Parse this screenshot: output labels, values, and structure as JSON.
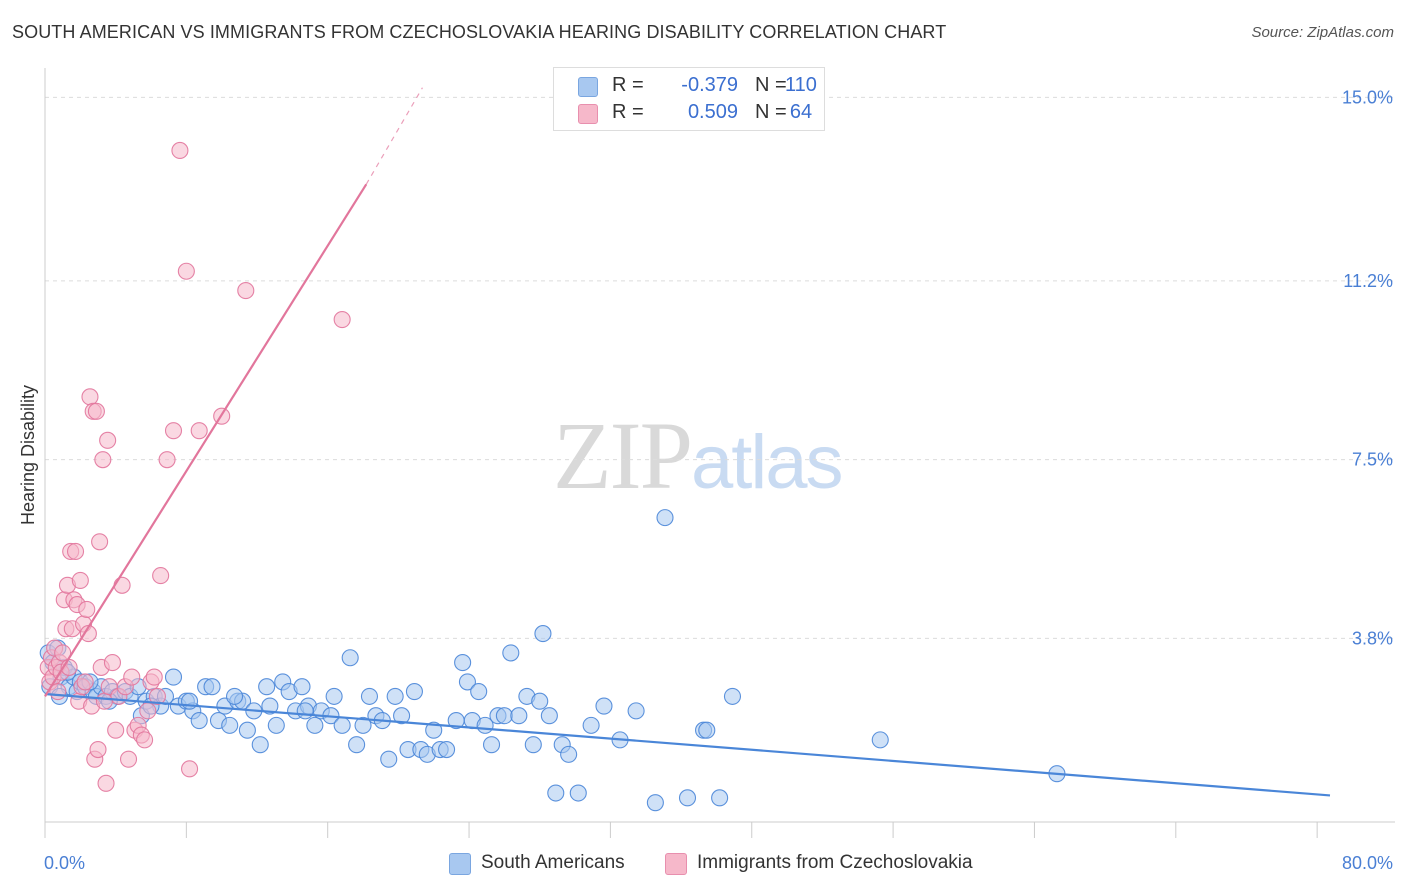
{
  "header": {
    "title": "SOUTH AMERICAN VS IMMIGRANTS FROM CZECHOSLOVAKIA HEARING DISABILITY CORRELATION CHART",
    "source": "Source: ZipAtlas.com"
  },
  "watermark": {
    "part1": "ZIP",
    "part2": "atlas"
  },
  "legend": {
    "rows": [
      {
        "r_label": "R =",
        "r_value": "-0.379",
        "n_label": "N =",
        "n_value": "110",
        "color": "#a8c8f0"
      },
      {
        "r_label": "R =",
        "r_value": "0.509",
        "n_label": "N =",
        "n_value": "64",
        "color": "#f6b8ca"
      }
    ]
  },
  "bottom_legend": {
    "items": [
      {
        "label": "South Americans",
        "color": "#a8c8f0"
      },
      {
        "label": "Immigrants from Czechoslovakia",
        "color": "#f6b8ca"
      }
    ]
  },
  "chart_data": {
    "type": "scatter",
    "ylabel": "Hearing Disability",
    "x_tick_labels": [
      "0.0%",
      "80.0%"
    ],
    "y_tick_labels": [
      "15.0%",
      "11.2%",
      "7.5%",
      "3.8%"
    ],
    "y_ticks": [
      15.0,
      11.2,
      7.5,
      3.8
    ],
    "xlim": [
      0,
      80
    ],
    "ylim": [
      0,
      15.4
    ],
    "grid": true,
    "legend_position": "top-center",
    "series": [
      {
        "name": "South Americans",
        "color": "#4a86d8",
        "fill": "#a8c8f0",
        "trend": {
          "x": [
            0,
            80
          ],
          "y": [
            2.65,
            0.55
          ]
        },
        "points": [
          [
            0.2,
            3.5
          ],
          [
            0.5,
            3.3
          ],
          [
            0.8,
            3.6
          ],
          [
            1.0,
            3.0
          ],
          [
            1.2,
            3.2
          ],
          [
            1.5,
            2.8
          ],
          [
            1.8,
            3.0
          ],
          [
            2.0,
            2.7
          ],
          [
            2.2,
            2.9
          ],
          [
            2.5,
            2.8
          ],
          [
            3.0,
            2.7
          ],
          [
            3.2,
            2.6
          ],
          [
            3.5,
            2.8
          ],
          [
            3.8,
            2.6
          ],
          [
            4.2,
            2.7
          ],
          [
            4.5,
            2.6
          ],
          [
            5.0,
            2.7
          ],
          [
            5.3,
            2.6
          ],
          [
            5.8,
            2.8
          ],
          [
            6.0,
            2.2
          ],
          [
            6.3,
            2.5
          ],
          [
            6.8,
            2.6
          ],
          [
            7.2,
            2.4
          ],
          [
            7.5,
            2.6
          ],
          [
            8.0,
            3.0
          ],
          [
            8.3,
            2.4
          ],
          [
            8.8,
            2.5
          ],
          [
            9.2,
            2.3
          ],
          [
            9.6,
            2.1
          ],
          [
            10.0,
            2.8
          ],
          [
            10.4,
            2.8
          ],
          [
            10.8,
            2.1
          ],
          [
            11.2,
            2.4
          ],
          [
            11.5,
            2.0
          ],
          [
            12.0,
            2.5
          ],
          [
            12.3,
            2.5
          ],
          [
            12.6,
            1.9
          ],
          [
            13.0,
            2.3
          ],
          [
            13.4,
            1.6
          ],
          [
            13.8,
            2.8
          ],
          [
            14.0,
            2.4
          ],
          [
            14.4,
            2.0
          ],
          [
            14.8,
            2.9
          ],
          [
            15.2,
            2.7
          ],
          [
            15.6,
            2.3
          ],
          [
            16.0,
            2.8
          ],
          [
            16.4,
            2.4
          ],
          [
            16.8,
            2.0
          ],
          [
            17.2,
            2.3
          ],
          [
            17.8,
            2.2
          ],
          [
            18.0,
            2.6
          ],
          [
            18.5,
            2.0
          ],
          [
            19.0,
            3.4
          ],
          [
            19.4,
            1.6
          ],
          [
            19.8,
            2.0
          ],
          [
            20.2,
            2.6
          ],
          [
            20.6,
            2.2
          ],
          [
            21.0,
            2.1
          ],
          [
            21.4,
            1.3
          ],
          [
            21.8,
            2.6
          ],
          [
            22.2,
            2.2
          ],
          [
            22.6,
            1.5
          ],
          [
            23.0,
            2.7
          ],
          [
            23.4,
            1.5
          ],
          [
            23.8,
            1.4
          ],
          [
            24.2,
            1.9
          ],
          [
            24.6,
            1.5
          ],
          [
            25.0,
            1.5
          ],
          [
            25.6,
            2.1
          ],
          [
            26.0,
            3.3
          ],
          [
            26.3,
            2.9
          ],
          [
            26.6,
            2.1
          ],
          [
            27.0,
            2.7
          ],
          [
            27.4,
            2.0
          ],
          [
            27.8,
            1.6
          ],
          [
            28.2,
            2.2
          ],
          [
            28.6,
            2.2
          ],
          [
            29.0,
            3.5
          ],
          [
            29.5,
            2.2
          ],
          [
            30.0,
            2.6
          ],
          [
            30.4,
            1.6
          ],
          [
            30.8,
            2.5
          ],
          [
            31.0,
            3.9
          ],
          [
            31.4,
            2.2
          ],
          [
            31.8,
            0.6
          ],
          [
            32.2,
            1.6
          ],
          [
            32.6,
            1.4
          ],
          [
            33.2,
            0.6
          ],
          [
            34.0,
            2.0
          ],
          [
            34.8,
            2.4
          ],
          [
            35.8,
            1.7
          ],
          [
            36.8,
            2.3
          ],
          [
            38.0,
            0.4
          ],
          [
            38.6,
            6.3
          ],
          [
            40.0,
            0.5
          ],
          [
            41.0,
            1.9
          ],
          [
            41.2,
            1.9
          ],
          [
            42.0,
            0.5
          ],
          [
            42.8,
            2.6
          ],
          [
            52.0,
            1.7
          ],
          [
            63.0,
            1.0
          ],
          [
            0.3,
            2.8
          ],
          [
            0.9,
            2.6
          ],
          [
            1.4,
            3.1
          ],
          [
            2.8,
            2.9
          ],
          [
            4.0,
            2.5
          ],
          [
            6.6,
            2.4
          ],
          [
            9.0,
            2.5
          ],
          [
            11.8,
            2.6
          ],
          [
            16.2,
            2.3
          ]
        ]
      },
      {
        "name": "Immigrants from Czechoslovakia",
        "color": "#e2769c",
        "fill": "#f6b8ca",
        "trend": {
          "x": [
            0,
            20
          ],
          "y": [
            2.6,
            13.2
          ]
        },
        "trend_extension": {
          "x": [
            20,
            23.5
          ],
          "y": [
            13.2,
            15.2
          ]
        },
        "points": [
          [
            0.2,
            3.2
          ],
          [
            0.3,
            2.9
          ],
          [
            0.4,
            3.4
          ],
          [
            0.5,
            3.0
          ],
          [
            0.6,
            3.6
          ],
          [
            0.7,
            3.2
          ],
          [
            0.8,
            2.7
          ],
          [
            0.9,
            3.3
          ],
          [
            1.0,
            3.1
          ],
          [
            1.1,
            3.5
          ],
          [
            1.2,
            4.6
          ],
          [
            1.3,
            4.0
          ],
          [
            1.4,
            4.9
          ],
          [
            1.5,
            3.2
          ],
          [
            1.6,
            5.6
          ],
          [
            1.7,
            4.0
          ],
          [
            1.8,
            4.6
          ],
          [
            1.9,
            5.6
          ],
          [
            2.0,
            4.5
          ],
          [
            2.1,
            2.5
          ],
          [
            2.2,
            5.0
          ],
          [
            2.3,
            2.8
          ],
          [
            2.4,
            4.1
          ],
          [
            2.5,
            2.9
          ],
          [
            2.6,
            4.4
          ],
          [
            2.7,
            3.9
          ],
          [
            2.8,
            8.8
          ],
          [
            2.9,
            2.4
          ],
          [
            3.0,
            8.5
          ],
          [
            3.1,
            1.3
          ],
          [
            3.2,
            8.5
          ],
          [
            3.3,
            1.5
          ],
          [
            3.4,
            5.8
          ],
          [
            3.5,
            3.2
          ],
          [
            3.6,
            7.5
          ],
          [
            3.7,
            2.5
          ],
          [
            3.8,
            0.8
          ],
          [
            3.9,
            7.9
          ],
          [
            4.0,
            2.8
          ],
          [
            4.2,
            3.3
          ],
          [
            4.4,
            1.9
          ],
          [
            4.6,
            2.6
          ],
          [
            4.8,
            4.9
          ],
          [
            5.0,
            2.8
          ],
          [
            5.2,
            1.3
          ],
          [
            5.4,
            3.0
          ],
          [
            5.6,
            1.9
          ],
          [
            5.8,
            2.0
          ],
          [
            6.0,
            1.8
          ],
          [
            6.2,
            1.7
          ],
          [
            6.4,
            2.3
          ],
          [
            6.6,
            2.9
          ],
          [
            6.8,
            3.0
          ],
          [
            7.0,
            2.6
          ],
          [
            7.2,
            5.1
          ],
          [
            7.6,
            7.5
          ],
          [
            8.0,
            8.1
          ],
          [
            8.4,
            13.9
          ],
          [
            8.8,
            11.4
          ],
          [
            9.0,
            1.1
          ],
          [
            9.6,
            8.1
          ],
          [
            11.0,
            8.4
          ],
          [
            12.5,
            11.0
          ],
          [
            18.5,
            10.4
          ]
        ]
      }
    ]
  }
}
